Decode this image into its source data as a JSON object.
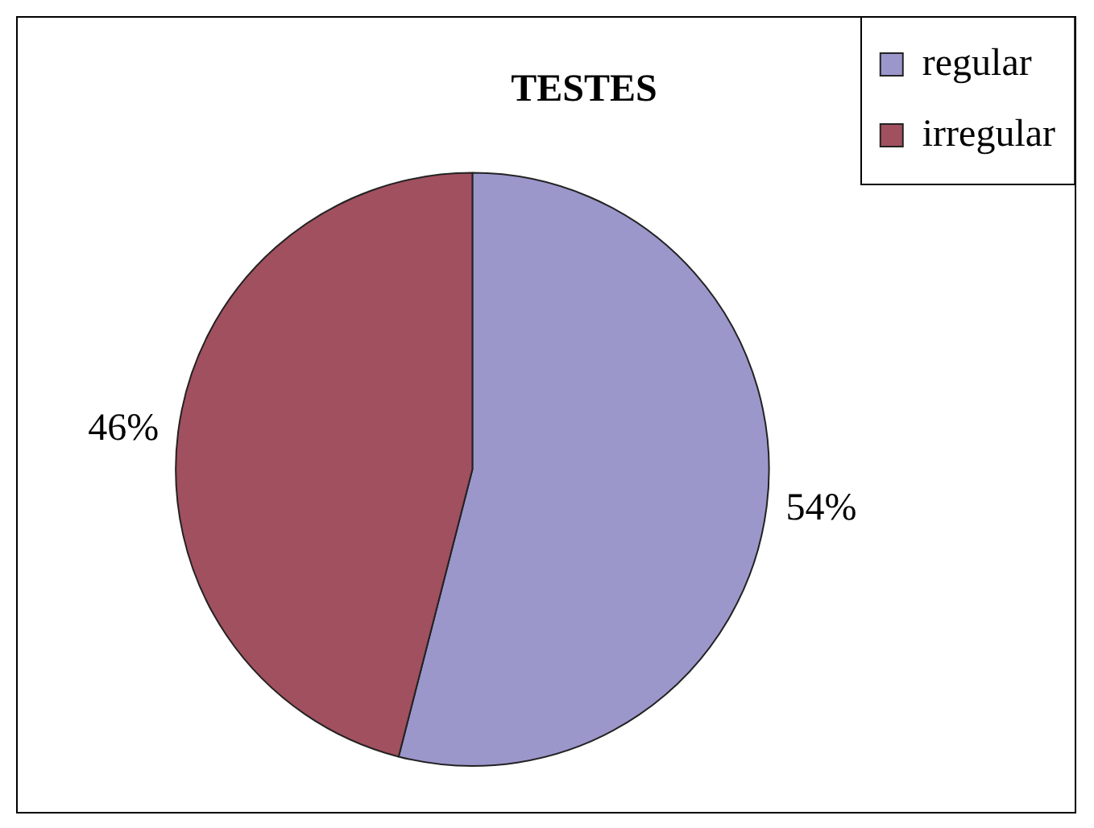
{
  "chart_data": {
    "type": "pie",
    "title": "TESTES",
    "categories": [
      "regular",
      "irregular"
    ],
    "values": [
      54,
      46
    ],
    "value_labels": [
      "54%",
      "46%"
    ],
    "colors": [
      "#9b97cb",
      "#a1505f"
    ],
    "legend": "top right"
  }
}
